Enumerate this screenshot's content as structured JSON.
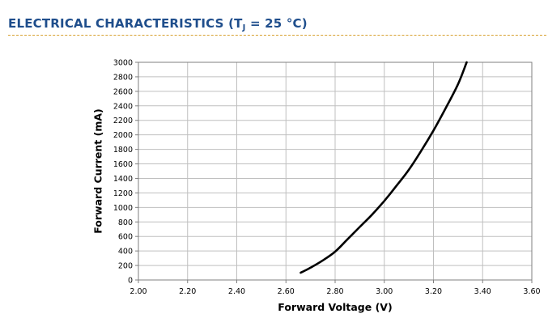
{
  "header": {
    "title_main": "ELECTRICAL CHARACTERISTICS (T",
    "title_sub": "J",
    "title_end": " = 25 °C)"
  },
  "chart_data": {
    "type": "line",
    "xlabel": "Forward Voltage (V)",
    "ylabel": "Forward Current (mA)",
    "xlim": [
      2.0,
      3.6
    ],
    "ylim": [
      0,
      3000
    ],
    "x_ticks": [
      "2.00",
      "2.20",
      "2.40",
      "2.60",
      "2.80",
      "3.00",
      "3.20",
      "3.40",
      "3.60"
    ],
    "y_ticks": [
      "0",
      "200",
      "400",
      "600",
      "800",
      "1000",
      "1200",
      "1400",
      "1600",
      "1800",
      "2000",
      "2200",
      "2400",
      "2600",
      "2800",
      "3000"
    ],
    "grid": true,
    "series": [
      {
        "color": "#000000",
        "x": [
          2.66,
          2.7,
          2.75,
          2.8,
          2.85,
          2.9,
          2.95,
          3.0,
          3.05,
          3.1,
          3.15,
          3.2,
          3.25,
          3.3,
          3.335
        ],
        "y": [
          100,
          170,
          270,
          390,
          560,
          730,
          900,
          1090,
          1300,
          1520,
          1780,
          2060,
          2370,
          2700,
          3000
        ]
      }
    ]
  }
}
